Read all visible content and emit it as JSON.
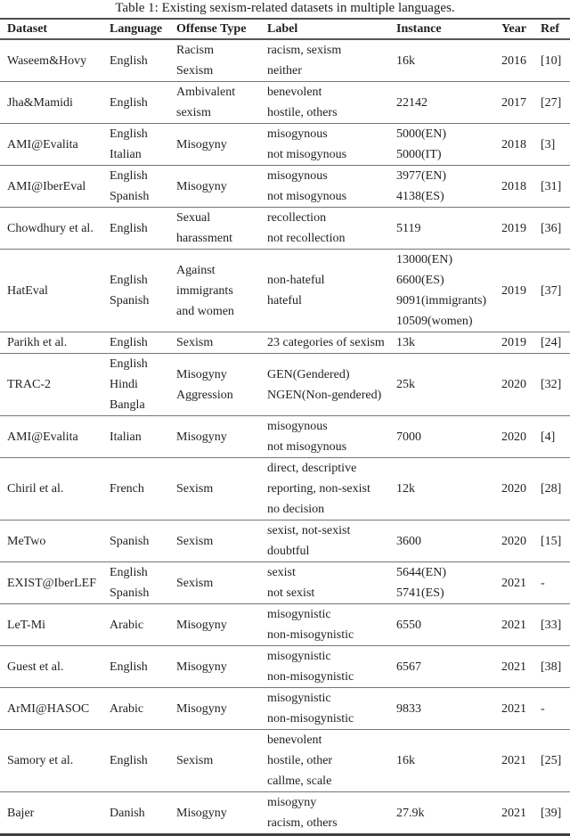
{
  "caption": "Table 1: Existing sexism-related datasets in multiple languages.",
  "colors": {
    "text": "#1f1f1f",
    "rule_light": "#767676",
    "rule_heavy": "#3e3e3e",
    "background": "#ffffff"
  },
  "table": {
    "headers": [
      "Dataset",
      "Language",
      "Offense Type",
      "Label",
      "Instance",
      "Year",
      "Ref"
    ],
    "rows": [
      {
        "dataset": "Waseem&Hovy",
        "language": [
          "English"
        ],
        "offense": [
          "Racism",
          "Sexism"
        ],
        "label": [
          "racism, sexism",
          "neither"
        ],
        "instance": [
          "16k"
        ],
        "year": "2016",
        "ref": "[10]"
      },
      {
        "dataset": "Jha&Mamidi",
        "language": [
          "English"
        ],
        "offense": [
          "Ambivalent",
          "sexism"
        ],
        "label": [
          "benevolent",
          "hostile, others"
        ],
        "instance": [
          "22142"
        ],
        "year": "2017",
        "ref": "[27]"
      },
      {
        "dataset": "AMI@Evalita",
        "language": [
          "English",
          "Italian"
        ],
        "offense": [
          "Misogyny"
        ],
        "label": [
          "misogynous",
          "not misogynous"
        ],
        "instance": [
          "5000(EN)",
          "5000(IT)"
        ],
        "year": "2018",
        "ref": "[3]"
      },
      {
        "dataset": "AMI@IberEval",
        "language": [
          "English",
          "Spanish"
        ],
        "offense": [
          "Misogyny"
        ],
        "label": [
          "misogynous",
          "not misogynous"
        ],
        "instance": [
          "3977(EN)",
          "4138(ES)"
        ],
        "year": "2018",
        "ref": "[31]"
      },
      {
        "dataset": "Chowdhury et al.",
        "language": [
          "English"
        ],
        "offense": [
          "Sexual",
          "harassment"
        ],
        "label": [
          "recollection",
          "not recollection"
        ],
        "instance": [
          "5119"
        ],
        "year": "2019",
        "ref": "[36]"
      },
      {
        "dataset": "HatEval",
        "language": [
          "English",
          "Spanish"
        ],
        "offense": [
          "Against",
          "immigrants",
          "and women"
        ],
        "label": [
          "non-hateful",
          "hateful"
        ],
        "instance": [
          "13000(EN)",
          "6600(ES)",
          "9091(immigrants)",
          "10509(women)"
        ],
        "year": "2019",
        "ref": "[37]"
      },
      {
        "dataset": "Parikh et al.",
        "language": [
          "English"
        ],
        "offense": [
          "Sexism"
        ],
        "label": [
          "23 categories of sexism"
        ],
        "instance": [
          "13k"
        ],
        "year": "2019",
        "ref": "[24]"
      },
      {
        "dataset": "TRAC-2",
        "language": [
          "English",
          "Hindi",
          "Bangla"
        ],
        "offense": [
          "Misogyny",
          "Aggression"
        ],
        "label": [
          "GEN(Gendered)",
          "NGEN(Non-gendered)"
        ],
        "instance": [
          "25k"
        ],
        "year": "2020",
        "ref": "[32]"
      },
      {
        "dataset": "AMI@Evalita",
        "language": [
          "Italian"
        ],
        "offense": [
          "Misogyny"
        ],
        "label": [
          "misogynous",
          "not misogynous"
        ],
        "instance": [
          "7000"
        ],
        "year": "2020",
        "ref": "[4]"
      },
      {
        "dataset": "Chiril et al.",
        "language": [
          "French"
        ],
        "offense": [
          "Sexism"
        ],
        "label": [
          "direct, descriptive",
          "reporting, non-sexist",
          "no decision"
        ],
        "instance": [
          "12k"
        ],
        "year": "2020",
        "ref": "[28]"
      },
      {
        "dataset": "MeTwo",
        "language": [
          "Spanish"
        ],
        "offense": [
          "Sexism"
        ],
        "label": [
          "sexist, not-sexist",
          "doubtful"
        ],
        "instance": [
          "3600"
        ],
        "year": "2020",
        "ref": "[15]"
      },
      {
        "dataset": "EXIST@IberLEF",
        "language": [
          "English",
          "Spanish"
        ],
        "offense": [
          "Sexism"
        ],
        "label": [
          "sexist",
          "not sexist"
        ],
        "instance": [
          "5644(EN)",
          "5741(ES)"
        ],
        "year": "2021",
        "ref": "-"
      },
      {
        "dataset": "LeT-Mi",
        "language": [
          "Arabic"
        ],
        "offense": [
          "Misogyny"
        ],
        "label": [
          "misogynistic",
          "non-misogynistic"
        ],
        "instance": [
          "6550"
        ],
        "year": "2021",
        "ref": "[33]"
      },
      {
        "dataset": "Guest et al.",
        "language": [
          "English"
        ],
        "offense": [
          "Misogyny"
        ],
        "label": [
          "misogynistic",
          "non-misogynistic"
        ],
        "instance": [
          "6567"
        ],
        "year": "2021",
        "ref": "[38]"
      },
      {
        "dataset": "ArMI@HASOC",
        "language": [
          "Arabic"
        ],
        "offense": [
          "Misogyny"
        ],
        "label": [
          "misogynistic",
          "non-misogynistic"
        ],
        "instance": [
          "9833"
        ],
        "year": "2021",
        "ref": "-"
      },
      {
        "dataset": "Samory et al.",
        "language": [
          "English"
        ],
        "offense": [
          "Sexism"
        ],
        "label": [
          "benevolent",
          "hostile, other",
          "callme, scale"
        ],
        "instance": [
          "16k"
        ],
        "year": "2021",
        "ref": "[25]"
      },
      {
        "dataset": "Bajer",
        "language": [
          "Danish"
        ],
        "offense": [
          "Misogyny"
        ],
        "label": [
          "misogyny",
          "racism, others"
        ],
        "instance": [
          "27.9k"
        ],
        "year": "2021",
        "ref": "[39]"
      }
    ]
  }
}
